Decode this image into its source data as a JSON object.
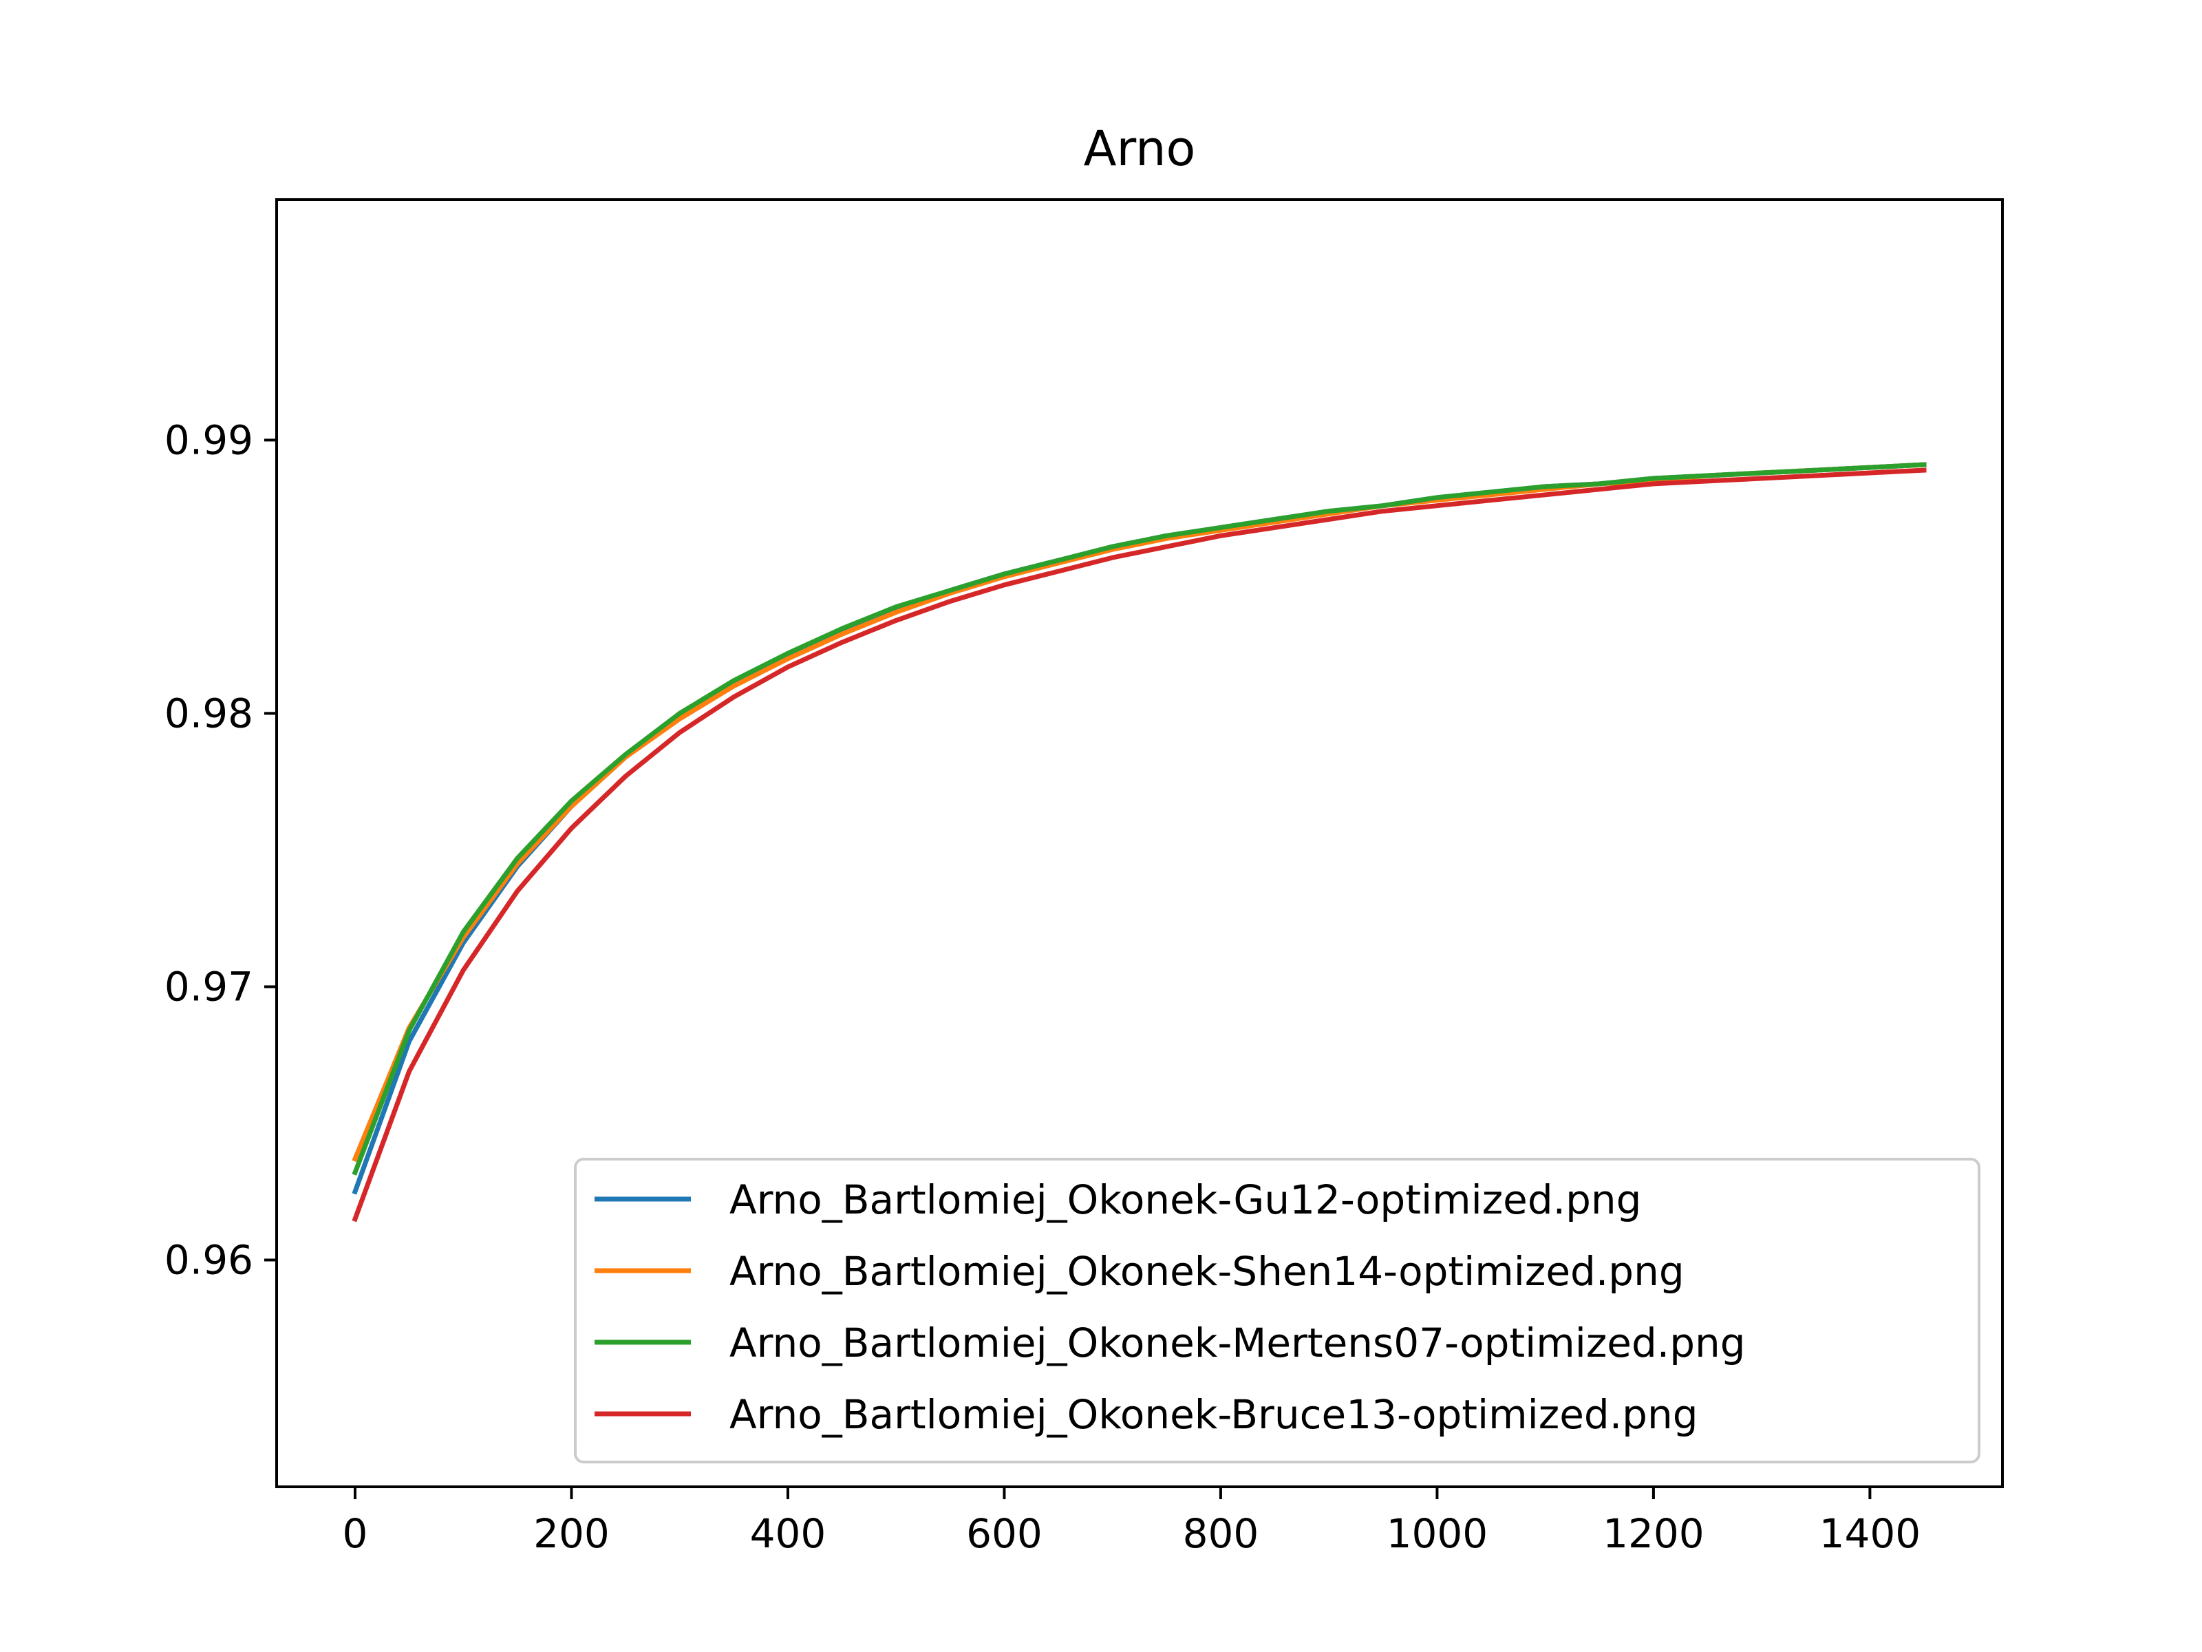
{
  "chart_data": {
    "type": "line",
    "title": "Arno",
    "xlabel": "",
    "ylabel": "",
    "xlim": [
      -72.5,
      1522.5
    ],
    "ylim": [
      0.9517,
      0.9988
    ],
    "xticks": [
      0,
      200,
      400,
      600,
      800,
      1000,
      1200,
      1400
    ],
    "yticks": [
      0.96,
      0.97,
      0.98,
      0.99
    ],
    "xtick_labels": [
      "0",
      "200",
      "400",
      "600",
      "800",
      "1000",
      "1200",
      "1400"
    ],
    "ytick_labels": [
      "0.96",
      "0.97",
      "0.98",
      "0.99"
    ],
    "grid": false,
    "legend_position": "lower-right",
    "x": [
      0,
      50,
      100,
      150,
      200,
      250,
      300,
      350,
      400,
      450,
      500,
      550,
      600,
      650,
      700,
      750,
      800,
      850,
      900,
      950,
      1000,
      1050,
      1100,
      1150,
      1200,
      1250,
      1300,
      1350,
      1400,
      1450
    ],
    "series": [
      {
        "name": "Arno_Bartlomiej_Okonek-Gu12-optimized.png",
        "color": "#1f77b4",
        "values": [
          0.9625,
          0.968,
          0.9716,
          0.9744,
          0.9766,
          0.9784,
          0.9799,
          0.9811,
          0.9821,
          0.983,
          0.9838,
          0.9845,
          0.9851,
          0.9856,
          0.9861,
          0.9865,
          0.9868,
          0.9871,
          0.9874,
          0.9876,
          0.9879,
          0.9881,
          0.9883,
          0.9884,
          0.9886,
          0.9887,
          0.9888,
          0.9889,
          0.989,
          0.9891
        ]
      },
      {
        "name": "Arno_Bartlomiej_Okonek-Shen14-optimized.png",
        "color": "#ff7f0e",
        "values": [
          0.9637,
          0.9685,
          0.9718,
          0.9745,
          0.9766,
          0.9784,
          0.9798,
          0.981,
          0.982,
          0.9829,
          0.9837,
          0.9844,
          0.985,
          0.9855,
          0.986,
          0.9864,
          0.9867,
          0.987,
          0.9873,
          0.9876,
          0.9878,
          0.988,
          0.9882,
          0.9884,
          0.9885,
          0.9887,
          0.9888,
          0.9889,
          0.989,
          0.9891
        ]
      },
      {
        "name": "Arno_Bartlomiej_Okonek-Mertens07-optimized.png",
        "color": "#2ca02c",
        "values": [
          0.9632,
          0.9684,
          0.972,
          0.9747,
          0.9768,
          0.9785,
          0.98,
          0.9812,
          0.9822,
          0.9831,
          0.9839,
          0.9845,
          0.9851,
          0.9856,
          0.9861,
          0.9865,
          0.9868,
          0.9871,
          0.9874,
          0.9876,
          0.9879,
          0.9881,
          0.9883,
          0.9884,
          0.9886,
          0.9887,
          0.9888,
          0.9889,
          0.989,
          0.9891
        ]
      },
      {
        "name": "Arno_Bartlomiej_Okonek-Bruce13-optimized.png",
        "color": "#d62728",
        "values": [
          0.9615,
          0.9669,
          0.9706,
          0.9735,
          0.9758,
          0.9777,
          0.9793,
          0.9806,
          0.9817,
          0.9826,
          0.9834,
          0.9841,
          0.9847,
          0.9852,
          0.9857,
          0.9861,
          0.9865,
          0.9868,
          0.9871,
          0.9874,
          0.9876,
          0.9878,
          0.988,
          0.9882,
          0.9884,
          0.9885,
          0.9886,
          0.9887,
          0.9888,
          0.9889
        ]
      }
    ]
  }
}
